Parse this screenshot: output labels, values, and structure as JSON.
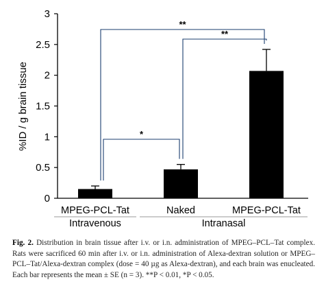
{
  "chart_data": {
    "type": "bar",
    "categories": [
      "MPEG-PCL-Tat",
      "Naked",
      "MPEG-PCL-Tat"
    ],
    "groups": [
      {
        "label": "Intravenous",
        "categories": [
          0
        ]
      },
      {
        "label": "Intranasal",
        "categories": [
          1,
          2
        ]
      }
    ],
    "values": [
      0.15,
      0.47,
      2.07
    ],
    "errors": [
      0.05,
      0.08,
      0.35
    ],
    "ylabel": "%ID / g brain tissue",
    "ylim": [
      0,
      3
    ],
    "yticks": [
      "0",
      "0.5",
      "1",
      "1.5",
      "2",
      "2.5",
      "3"
    ],
    "bar_color": "#000000",
    "significance": [
      {
        "from": 0,
        "to": 2,
        "label": "**"
      },
      {
        "from": 1,
        "to": 2,
        "label": "**"
      },
      {
        "from": 0,
        "to": 1,
        "label": "*"
      }
    ]
  },
  "caption": {
    "fig_label": "Fig. 2.",
    "text": "Distribution in brain tissue after i.v. or i.n. administration of MPEG–PCL–Tat complex. Rats were sacrificed 60 min after i.v. or i.n. administration of Alexa-dextran solution or MPEG–PCL–Tat/Alexa-dextran complex (dose = 40 µg as Alexa-dextran), and each brain was enucleated. Each bar represents the mean ± SE (n = 3). **P < 0.01, *P < 0.05."
  }
}
